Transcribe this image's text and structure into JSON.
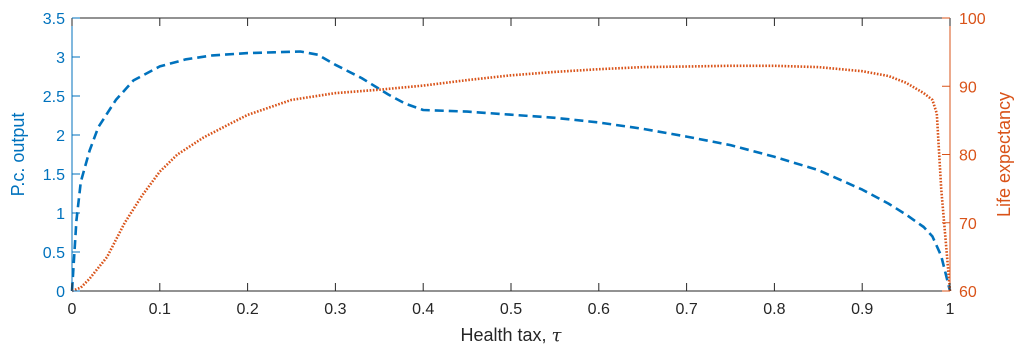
{
  "chart_data": {
    "type": "line",
    "title": "",
    "xlabel": "Health tax, ",
    "xlabel_symbol": "τ",
    "ylabel_left": "P.c. output",
    "ylabel_right": "Life expectancy",
    "xlim": [
      0,
      1
    ],
    "ylim_left": [
      0,
      3.5
    ],
    "ylim_right": [
      60,
      100
    ],
    "x_ticks": [
      0,
      0.1,
      0.2,
      0.3,
      0.4,
      0.5,
      0.6,
      0.7,
      0.8,
      0.9,
      1
    ],
    "x_tick_labels": [
      "0",
      "0.1",
      "0.2",
      "0.3",
      "0.4",
      "0.5",
      "0.6",
      "0.7",
      "0.8",
      "0.9",
      "1"
    ],
    "y_left_ticks": [
      0,
      0.5,
      1,
      1.5,
      2,
      2.5,
      3,
      3.5
    ],
    "y_left_tick_labels": [
      "0",
      "0.5",
      "1",
      "1.5",
      "2",
      "2.5",
      "3",
      "3.5"
    ],
    "y_right_ticks": [
      60,
      70,
      80,
      90,
      100
    ],
    "y_right_tick_labels": [
      "60",
      "70",
      "80",
      "90",
      "100"
    ],
    "grid": false,
    "legend": "none",
    "series": [
      {
        "axis": "left",
        "style": "dashed",
        "color": "#0072BD",
        "x": [
          0,
          0.005,
          0.01,
          0.02,
          0.03,
          0.05,
          0.07,
          0.1,
          0.13,
          0.16,
          0.2,
          0.23,
          0.26,
          0.28,
          0.3,
          0.33,
          0.36,
          0.38,
          0.4,
          0.45,
          0.5,
          0.55,
          0.6,
          0.65,
          0.7,
          0.75,
          0.8,
          0.85,
          0.9,
          0.93,
          0.95,
          0.97,
          0.98,
          0.99,
          1.0
        ],
        "y": [
          0,
          0.9,
          1.4,
          1.8,
          2.1,
          2.45,
          2.7,
          2.88,
          2.97,
          3.02,
          3.05,
          3.06,
          3.07,
          3.03,
          2.9,
          2.73,
          2.52,
          2.4,
          2.32,
          2.3,
          2.26,
          2.22,
          2.16,
          2.08,
          1.98,
          1.87,
          1.72,
          1.55,
          1.3,
          1.12,
          0.98,
          0.82,
          0.7,
          0.45,
          0.0
        ]
      },
      {
        "axis": "right",
        "style": "dotted",
        "color": "#D95319",
        "x": [
          0,
          0.01,
          0.02,
          0.04,
          0.06,
          0.08,
          0.1,
          0.12,
          0.15,
          0.18,
          0.2,
          0.25,
          0.3,
          0.35,
          0.4,
          0.45,
          0.5,
          0.55,
          0.6,
          0.65,
          0.7,
          0.75,
          0.8,
          0.85,
          0.9,
          0.93,
          0.95,
          0.97,
          0.98,
          0.985,
          0.99,
          1.0
        ],
        "y": [
          60,
          60.5,
          61.8,
          65,
          70,
          74,
          77.5,
          80,
          82.5,
          84.5,
          85.8,
          88,
          89,
          89.5,
          90.1,
          90.9,
          91.6,
          92.1,
          92.5,
          92.8,
          92.9,
          93,
          93,
          92.8,
          92.2,
          91.5,
          90.5,
          89,
          88,
          86,
          75,
          60
        ]
      }
    ]
  }
}
